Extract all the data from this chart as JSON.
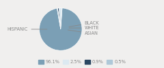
{
  "labels": [
    "HISPANIC",
    "WHITE",
    "BLACK",
    "ASIAN"
  ],
  "values": [
    96.1,
    2.5,
    0.9,
    0.5
  ],
  "colors": [
    "#7b9fb5",
    "#dce9f1",
    "#2b4762",
    "#aec8d8"
  ],
  "legend_labels": [
    "96.1%",
    "2.5%",
    "0.9%",
    "0.5%"
  ],
  "bg_color": "#f0efee",
  "text_color": "#888888",
  "font_size": 4.8,
  "startangle": 100
}
